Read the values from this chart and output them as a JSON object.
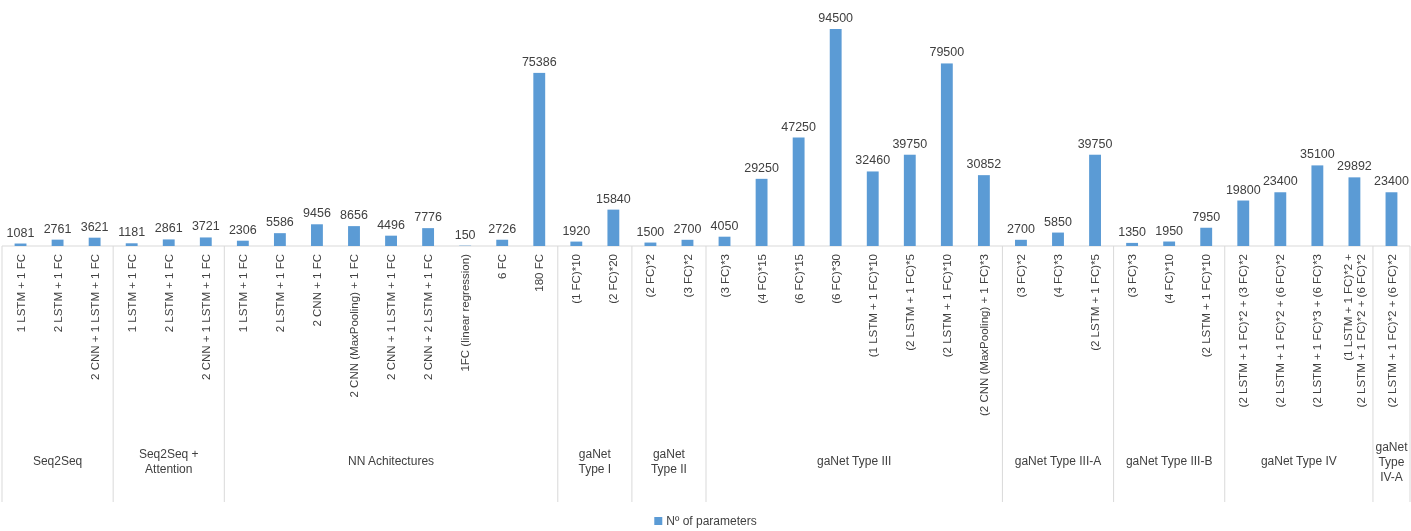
{
  "chart_data": [
    {
      "type": "bar",
      "xlabel": "Seq2Seq",
      "categories": [
        "1 LSTM + 1 FC",
        "2 LSTM + 1 FC",
        "2 CNN + 1 LSTM + 1 FC"
      ],
      "data_labels": true,
      "series": [
        {
          "color": "#5b9bd5",
          "values": [
            1081,
            2761,
            3621
          ]
        }
      ]
    },
    {
      "type": "bar",
      "xlabel": "Seq2Seq + Attention",
      "categories": [
        "1 LSTM + 1 FC",
        "2 LSTM + 1 FC",
        "2 CNN + 1 LSTM + 1 FC"
      ],
      "data_labels": true,
      "series": [
        {
          "color": "#5b9bd5",
          "values": [
            1181,
            2861,
            3721
          ]
        }
      ]
    },
    {
      "type": "bar",
      "xlabel": "NN Achitectures",
      "categories": [
        "1 LSTM + 1 FC",
        "2 LSTM + 1 FC",
        "2 CNN + 1 FC",
        "2 CNN (MaxPooling) + 1 FC",
        "2 CNN + 1 LSTM + 1 FC",
        "2 CNN + 2 LSTM + 1 FC",
        "1FC (linear regression)",
        "6 FC",
        "180 FC"
      ],
      "data_labels": true,
      "series": [
        {
          "color": "#5b9bd5",
          "values": [
            2306,
            5586,
            9456,
            8656,
            4496,
            7776,
            150,
            2726,
            75386
          ]
        }
      ]
    },
    {
      "type": "bar",
      "xlabel": "gaNet Type I",
      "categories": [
        "(1 FC)*10",
        "(2 FC)*20"
      ],
      "data_labels": true,
      "series": [
        {
          "color": "#5b9bd5",
          "values": [
            1920,
            15840
          ]
        }
      ]
    },
    {
      "type": "bar",
      "xlabel": "gaNet Type II",
      "categories": [
        "(2 FC)*2",
        "(3 FC)*2"
      ],
      "data_labels": true,
      "series": [
        {
          "color": "#5b9bd5",
          "values": [
            1500,
            2700
          ]
        }
      ]
    },
    {
      "type": "bar",
      "xlabel": "gaNet Type III",
      "categories": [
        "(3 FC)*3",
        "(4 FC)*15",
        "(6 FC)*15",
        "(6 FC)*30",
        "(1 LSTM + 1 FC)*10",
        "(2 LSTM + 1 FC)*5",
        "(2 LSTM + 1 FC)*10",
        "(2 CNN (MaxPooling) + 1 FC)*3"
      ],
      "data_labels": true,
      "legend": "bottom",
      "series": [
        {
          "name": "Nº of parameters",
          "color": "#5b9bd5",
          "values": [
            4050,
            29250,
            47250,
            94500,
            32460,
            39750,
            79500,
            30852
          ]
        }
      ]
    },
    {
      "type": "bar",
      "xlabel": "gaNet Type III-A",
      "categories": [
        "(3 FC)*2",
        "(4 FC)*3",
        "(2 LSTM + 1 FC)*5"
      ],
      "data_labels": true,
      "series": [
        {
          "color": "#5b9bd5",
          "values": [
            2700,
            5850,
            39750
          ]
        }
      ]
    },
    {
      "type": "bar",
      "xlabel": "gaNet Type III-B",
      "categories": [
        "(3 FC)*3",
        "(4 FC)*10",
        "(2 LSTM + 1 FC)*10"
      ],
      "data_labels": true,
      "series": [
        {
          "color": "#5b9bd5",
          "values": [
            1350,
            1950,
            7950
          ]
        }
      ]
    },
    {
      "type": "bar",
      "xlabel": "gaNet Type IV",
      "categories": [
        "(2 LSTM + 1 FC)*2 + (3 FC)*2",
        "(2 LSTM + 1 FC)*2 + (6 FC)*2",
        "(2 LSTM + 1 FC)*3 + (6 FC)*3",
        "(1 LSTM + 1 FC)*2 +\n(2 LSTM + 1 FC)*2 + (6 FC)*2"
      ],
      "data_labels": true,
      "series": [
        {
          "color": "#5b9bd5",
          "values": [
            19800,
            23400,
            35100,
            29892
          ]
        }
      ]
    },
    {
      "type": "bar",
      "xlabel": "gaNet Type IV-A",
      "categories": [
        "(2 LSTM + 1 FC)*2 + (6 FC)*2"
      ],
      "data_labels": true,
      "series": [
        {
          "color": "#5b9bd5",
          "values": [
            23400
          ]
        }
      ]
    }
  ]
}
